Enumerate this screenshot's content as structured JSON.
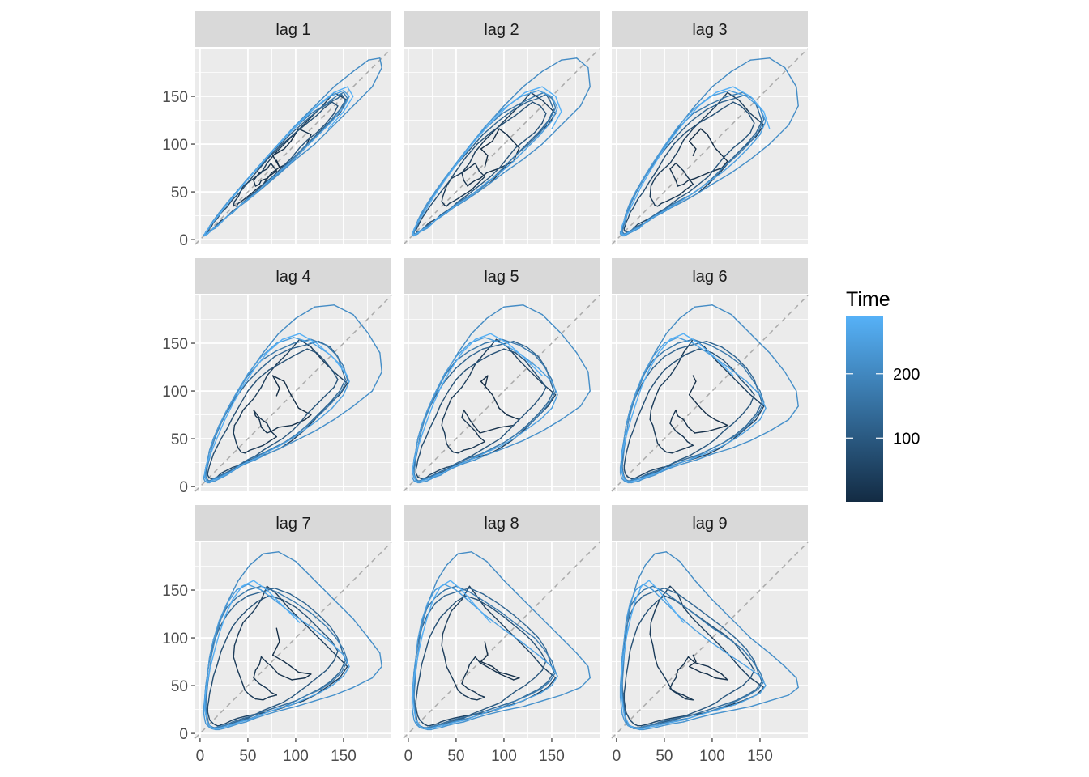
{
  "chart_data": {
    "type": "line",
    "kind": "lag-plot facet grid",
    "facets": [
      "lag 1",
      "lag 2",
      "lag 3",
      "lag 4",
      "lag 5",
      "lag 6",
      "lag 7",
      "lag 8",
      "lag 9"
    ],
    "xlim": [
      -5,
      200
    ],
    "ylim": [
      -5,
      200
    ],
    "x_ticks": [
      0,
      50,
      100,
      150
    ],
    "y_ticks": [
      0,
      50,
      100,
      150
    ],
    "x_tick_labels": [
      "0",
      "50",
      "100",
      "150"
    ],
    "y_tick_labels": [
      "0",
      "50",
      "100",
      "150"
    ],
    "reference_line": "y = x (dashed, grey)",
    "grid": true,
    "series_colour_by": "Time",
    "legend": {
      "title": "Time",
      "position": "right",
      "type": "colourbar",
      "range": [
        1,
        289
      ],
      "breaks": [
        100,
        200
      ],
      "break_labels": [
        "100",
        "200"
      ],
      "low_color": "#132B43",
      "high_color": "#56B1F7"
    },
    "series": [
      {
        "values": [
          80,
          83,
          76,
          88,
          95,
          103,
          116,
          110,
          96,
          82,
          75,
          70,
          64,
          62,
          58,
          56,
          62,
          70,
          74,
          80,
          72,
          66,
          58,
          52,
          47,
          43,
          40,
          38,
          35,
          36,
          40,
          45,
          56,
          64,
          70,
          80,
          92,
          104,
          116,
          128,
          140,
          154,
          146,
          132,
          120,
          108,
          96,
          84,
          70,
          58,
          48,
          40,
          34,
          30,
          26,
          22,
          20,
          18,
          16,
          14,
          12,
          10,
          9,
          8,
          8,
          9,
          10,
          12,
          14,
          18,
          22,
          28,
          34,
          42,
          50,
          60,
          72,
          86,
          100,
          112,
          122,
          130,
          138,
          144,
          140,
          132,
          122,
          112,
          104,
          96,
          86,
          76,
          66,
          58,
          50,
          44,
          38,
          32,
          28,
          24,
          20,
          16,
          14,
          12,
          10,
          9,
          8,
          7,
          6,
          6,
          7,
          8,
          10,
          14,
          20,
          28,
          38,
          50,
          64,
          78,
          94,
          110,
          124,
          136,
          144,
          148,
          152,
          146,
          136,
          124,
          112,
          100,
          88,
          76,
          64,
          54,
          46,
          40,
          34,
          30,
          26,
          22,
          18,
          16,
          14,
          12,
          10,
          8,
          7,
          6,
          5,
          5,
          6,
          8,
          10,
          14,
          20,
          28,
          38,
          50,
          64,
          80,
          98,
          116,
          132,
          142,
          150,
          154,
          148,
          138,
          126,
          112,
          100,
          88,
          76,
          64,
          54,
          46,
          40,
          34,
          28,
          24,
          20,
          16,
          14,
          12,
          10,
          9,
          8,
          7,
          6,
          6,
          7,
          8,
          10,
          12,
          16,
          22,
          30,
          40,
          52,
          66,
          82,
          100,
          120,
          140,
          160,
          176,
          188,
          190,
          180,
          160,
          140,
          120,
          100,
          84,
          70,
          58,
          48,
          40,
          34,
          28,
          24,
          20,
          16,
          12,
          10,
          8,
          6,
          5,
          4,
          4,
          5,
          6,
          8,
          10,
          14,
          20,
          28,
          38,
          50,
          64,
          80,
          98,
          118,
          136,
          150,
          156,
          150,
          138,
          124,
          110,
          96,
          82,
          70,
          60,
          50,
          42,
          36,
          30,
          26,
          22,
          18,
          14,
          12,
          10,
          8,
          7,
          6,
          5,
          5,
          6,
          8,
          11,
          15,
          20,
          26,
          34,
          44,
          56,
          70,
          86,
          104,
          122,
          140,
          154,
          160,
          150,
          134,
          116
        ]
      }
    ]
  }
}
